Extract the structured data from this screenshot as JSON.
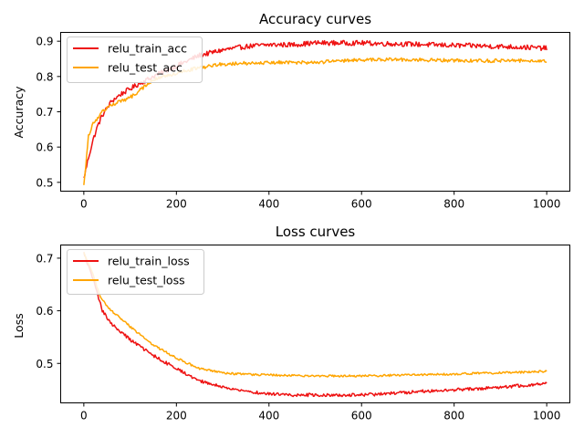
{
  "chart_data": [
    {
      "type": "line",
      "title": "Accuracy curves",
      "xlabel": "",
      "ylabel": "Accuracy",
      "xlim": [
        -50,
        1050
      ],
      "ylim": [
        0.475,
        0.925
      ],
      "xticks": [
        0,
        200,
        400,
        600,
        800,
        1000
      ],
      "yticks": [
        0.5,
        0.6,
        0.7,
        0.8,
        0.9
      ],
      "grid": false,
      "legend_position": "top-left",
      "series": [
        {
          "name": "relu_train_acc",
          "color": "#ee1111",
          "x": [
            0,
            10,
            20,
            30,
            40,
            50,
            60,
            80,
            100,
            120,
            150,
            200,
            250,
            300,
            350,
            400,
            450,
            500,
            550,
            600,
            650,
            700,
            750,
            800,
            850,
            900,
            950,
            1000
          ],
          "y": [
            0.51,
            0.57,
            0.62,
            0.66,
            0.69,
            0.71,
            0.73,
            0.75,
            0.765,
            0.78,
            0.8,
            0.83,
            0.86,
            0.875,
            0.885,
            0.89,
            0.89,
            0.895,
            0.895,
            0.895,
            0.893,
            0.892,
            0.89,
            0.888,
            0.887,
            0.885,
            0.883,
            0.88
          ],
          "noise": 0.007
        },
        {
          "name": "relu_test_acc",
          "color": "#ffa500",
          "x": [
            0,
            10,
            20,
            30,
            40,
            60,
            80,
            100,
            120,
            150,
            200,
            250,
            300,
            400,
            500,
            600,
            700,
            800,
            900,
            1000
          ],
          "y": [
            0.49,
            0.63,
            0.67,
            0.68,
            0.7,
            0.72,
            0.73,
            0.74,
            0.76,
            0.79,
            0.81,
            0.825,
            0.835,
            0.84,
            0.84,
            0.847,
            0.848,
            0.845,
            0.845,
            0.845
          ],
          "noise": 0.005
        }
      ]
    },
    {
      "type": "line",
      "title": "Loss curves",
      "xlabel": "",
      "ylabel": "Loss",
      "xlim": [
        -50,
        1050
      ],
      "ylim": [
        0.425,
        0.725
      ],
      "xticks": [
        0,
        200,
        400,
        600,
        800,
        1000
      ],
      "yticks": [
        0.5,
        0.6,
        0.7
      ],
      "grid": false,
      "legend_position": "top-left",
      "series": [
        {
          "name": "relu_train_loss",
          "color": "#ee1111",
          "x": [
            0,
            10,
            20,
            30,
            40,
            60,
            80,
            100,
            150,
            200,
            250,
            300,
            350,
            400,
            450,
            500,
            550,
            600,
            650,
            700,
            750,
            800,
            850,
            900,
            950,
            1000
          ],
          "y": [
            0.71,
            0.685,
            0.66,
            0.63,
            0.6,
            0.575,
            0.56,
            0.545,
            0.515,
            0.49,
            0.467,
            0.455,
            0.447,
            0.442,
            0.44,
            0.44,
            0.44,
            0.44,
            0.442,
            0.445,
            0.448,
            0.45,
            0.452,
            0.455,
            0.458,
            0.462
          ],
          "noise": 0.003
        },
        {
          "name": "relu_test_loss",
          "color": "#ffa500",
          "x": [
            0,
            10,
            20,
            30,
            40,
            60,
            80,
            100,
            150,
            200,
            250,
            300,
            350,
            400,
            500,
            600,
            700,
            800,
            900,
            1000
          ],
          "y": [
            0.71,
            0.69,
            0.67,
            0.64,
            0.62,
            0.6,
            0.585,
            0.57,
            0.535,
            0.51,
            0.49,
            0.482,
            0.479,
            0.478,
            0.476,
            0.476,
            0.478,
            0.48,
            0.482,
            0.485
          ],
          "noise": 0.002
        }
      ]
    }
  ]
}
